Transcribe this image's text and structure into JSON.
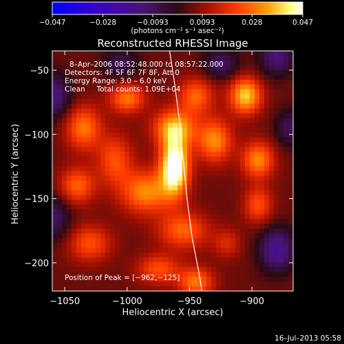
{
  "chart_data": {
    "type": "heatmap",
    "title": "Reconstructed RHESSI Image",
    "xlabel": "Heliocentric X (arcsec)",
    "ylabel": "Heliocentric Y (arcsec)",
    "xlim": [
      -1060,
      -867
    ],
    "ylim": [
      -222,
      -35
    ],
    "x_ticks": [
      -1050,
      -1000,
      -950,
      -900
    ],
    "x_tick_labels": [
      "−1050",
      "−1000",
      "−950",
      "−900"
    ],
    "y_ticks": [
      -50,
      -100,
      -150,
      -200
    ],
    "y_tick_labels": [
      "−50",
      "−100",
      "−150",
      "−200"
    ],
    "colorbar": {
      "range": [
        -0.047,
        0.047
      ],
      "ticks": [
        -0.047,
        -0.028,
        -0.0093,
        0.0093,
        0.028,
        0.047
      ],
      "tick_labels": [
        "−0.047",
        "−0.028",
        "−0.0093",
        "0.0093",
        "0.028",
        "0.047"
      ],
      "label": "(photons cm⁻² s⁻¹ asec⁻²)"
    },
    "annotations": [
      "8–Apr–2006 08:52:48.000 to 08:57:22.000",
      "Detectors: 4F 5F 6F 7F 8F, Att 0",
      "Energy Range: 3.0 – 6.0 keV",
      "Clean     Total counts: 1.09E+04"
    ],
    "peak_label": "Position of Peak = [−962,−125]",
    "peak": [
      -962,
      -125
    ],
    "limb_curve": [
      [
        -966,
        -35
      ],
      [
        -962,
        -60
      ],
      [
        -958,
        -90
      ],
      [
        -955,
        -120
      ],
      [
        -952,
        -150
      ],
      [
        -948,
        -180
      ],
      [
        -943,
        -205
      ],
      [
        -940,
        -222
      ]
    ],
    "blobs": [
      {
        "x": -962,
        "y": -125,
        "amp": 1.0,
        "sx": 8,
        "sy": 16
      },
      {
        "x": -962,
        "y": -95,
        "amp": 0.6,
        "sx": 12,
        "sy": 10
      },
      {
        "x": -985,
        "y": -145,
        "amp": 0.55,
        "sx": 14,
        "sy": 12
      },
      {
        "x": -1035,
        "y": -95,
        "amp": 0.5,
        "sx": 10,
        "sy": 12
      },
      {
        "x": -1040,
        "y": -140,
        "amp": 0.45,
        "sx": 10,
        "sy": 10
      },
      {
        "x": -1000,
        "y": -72,
        "amp": 0.5,
        "sx": 10,
        "sy": 8
      },
      {
        "x": -945,
        "y": -70,
        "amp": 0.45,
        "sx": 10,
        "sy": 10
      },
      {
        "x": -930,
        "y": -105,
        "amp": 0.55,
        "sx": 10,
        "sy": 12
      },
      {
        "x": -905,
        "y": -70,
        "amp": 0.7,
        "sx": 9,
        "sy": 10
      },
      {
        "x": -895,
        "y": -120,
        "amp": 0.55,
        "sx": 9,
        "sy": 10
      },
      {
        "x": -895,
        "y": -155,
        "amp": 0.4,
        "sx": 8,
        "sy": 10
      },
      {
        "x": -955,
        "y": -175,
        "amp": 0.45,
        "sx": 14,
        "sy": 10
      },
      {
        "x": -1030,
        "y": -185,
        "amp": 0.4,
        "sx": 12,
        "sy": 10
      },
      {
        "x": -975,
        "y": -205,
        "amp": 0.4,
        "sx": 12,
        "sy": 8
      },
      {
        "x": -945,
        "y": -215,
        "amp": 0.5,
        "sx": 10,
        "sy": 8
      },
      {
        "x": -1010,
        "y": -120,
        "amp": 0.4,
        "sx": 10,
        "sy": 14
      },
      {
        "x": -920,
        "y": -185,
        "amp": 0.25,
        "sx": 8,
        "sy": 8
      },
      {
        "x": -1060,
        "y": -70,
        "amp": -0.45,
        "sx": 10,
        "sy": 12
      },
      {
        "x": -1060,
        "y": -165,
        "amp": -0.35,
        "sx": 10,
        "sy": 12
      },
      {
        "x": -880,
        "y": -190,
        "amp": -0.5,
        "sx": 10,
        "sy": 12
      },
      {
        "x": -880,
        "y": -40,
        "amp": -0.4,
        "sx": 10,
        "sy": 10
      },
      {
        "x": -925,
        "y": -45,
        "amp": -0.35,
        "sx": 10,
        "sy": 8
      },
      {
        "x": -870,
        "y": -95,
        "amp": -0.3,
        "sx": 8,
        "sy": 10
      },
      {
        "x": -1005,
        "y": -45,
        "amp": -0.3,
        "sx": 10,
        "sy": 8
      }
    ]
  },
  "timestamp": "16–Jul–2013 05:58"
}
